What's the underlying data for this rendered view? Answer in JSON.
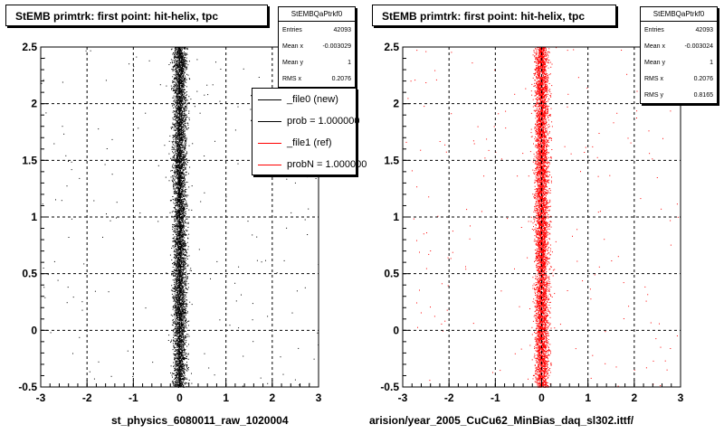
{
  "chart_data": [
    {
      "type": "scatter",
      "title": "StEMB primtrk: first point: hit-helix, tpc",
      "xlabel": "st_physics_6080011_raw_1020004",
      "ylabel": "",
      "xlim": [
        -3,
        3
      ],
      "ylim": [
        -0.5,
        2.5
      ],
      "xticks": [
        "-3",
        "-2",
        "-1",
        "0",
        "1",
        "2",
        "3"
      ],
      "yticks": [
        "-0.5",
        "0",
        "0.5",
        "1",
        "1.5",
        "2",
        "2.5"
      ],
      "grid": true,
      "marker_color": "#000000",
      "stats": {
        "name": "StEMBQaPtrkf0",
        "rows": [
          {
            "label": "Entries",
            "value": "42093"
          },
          {
            "label": "Mean x",
            "value": "-0.003029"
          },
          {
            "label": "Mean y",
            "value": "1"
          },
          {
            "label": "RMS x",
            "value": "0.2076"
          }
        ]
      },
      "legend": {
        "position": "right",
        "entries": [
          {
            "label": "_file0 (new)",
            "color": "#000000"
          },
          {
            "label": "prob = 1.000000",
            "color": "#000000"
          },
          {
            "label": "_file1 (ref)",
            "color": "#ff0000"
          },
          {
            "label": "probN = 1.000000",
            "color": "#ff0000"
          }
        ]
      }
    },
    {
      "type": "scatter",
      "title": "StEMB primtrk: first point: hit-helix, tpc",
      "xlabel": "arision/year_2005_CuCu62_MinBias_daq_sl302.ittf/",
      "ylabel": "",
      "xlim": [
        -3,
        3
      ],
      "ylim": [
        -0.5,
        2.5
      ],
      "xticks": [
        "-3",
        "-2",
        "-1",
        "0",
        "1",
        "2",
        "3"
      ],
      "yticks": [
        "-0.5",
        "0",
        "0.5",
        "1",
        "1.5",
        "2",
        "2.5"
      ],
      "grid": true,
      "marker_color": "#ff0000",
      "stats": {
        "name": "StEMBQaPtrkf0",
        "rows": [
          {
            "label": "Entries",
            "value": "42093"
          },
          {
            "label": "Mean x",
            "value": "-0.003024"
          },
          {
            "label": "Mean y",
            "value": "1"
          },
          {
            "label": "RMS x",
            "value": "0.2076"
          },
          {
            "label": "RMS y",
            "value": "0.8165"
          }
        ]
      }
    }
  ]
}
